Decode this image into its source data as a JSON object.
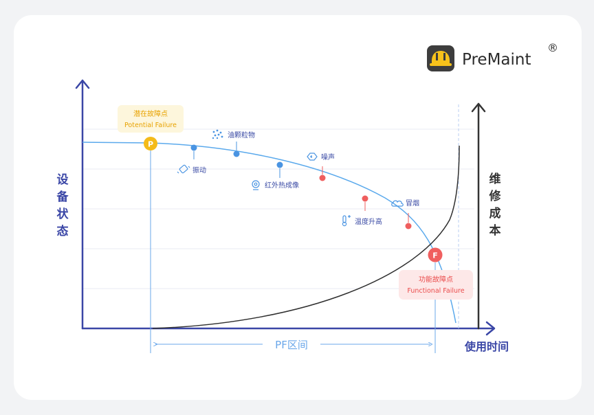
{
  "brand": {
    "name": "PreMaint",
    "registered": "®",
    "accent": "#2b2b2b",
    "logo_bg": "#3d3d3d",
    "logo_fg": "#f7c21b"
  },
  "axes": {
    "y_left_label": [
      "设",
      "备",
      "状",
      "态"
    ],
    "y_right_label": [
      "维",
      "修",
      "成",
      "本"
    ],
    "x_label": "使用时间",
    "color": "#3a46a6"
  },
  "potential_failure": {
    "letter": "P",
    "title": "潜在故障点",
    "subtitle": "Potential Failure",
    "color": "#f4bb1a",
    "bg": "#fdf6dc"
  },
  "functional_failure": {
    "letter": "F",
    "title": "功能故障点",
    "subtitle": "Functional Failure",
    "color": "#f05f5f",
    "bg": "#fde8e8"
  },
  "pf_interval": {
    "label": "PF区间",
    "color": "#6aa7ea"
  },
  "signals": [
    {
      "label": "振动",
      "icon": "vibration-icon",
      "level": "early"
    },
    {
      "label": "油颗粒物",
      "icon": "oil-particle-icon",
      "level": "early"
    },
    {
      "label": "红外热成像",
      "icon": "infrared-camera-icon",
      "level": "early"
    },
    {
      "label": "噪声",
      "icon": "noise-icon",
      "level": "late"
    },
    {
      "label": "温度升高",
      "icon": "thermometer-icon",
      "level": "late"
    },
    {
      "label": "冒烟",
      "icon": "smoke-icon",
      "level": "late"
    }
  ],
  "colors": {
    "condition_curve": "#5aa9ec",
    "cost_curve": "#2f2f2f",
    "early_dot": "#4a94e2",
    "late_dot": "#ef5e5e",
    "grid": "#e9ebf3"
  }
}
